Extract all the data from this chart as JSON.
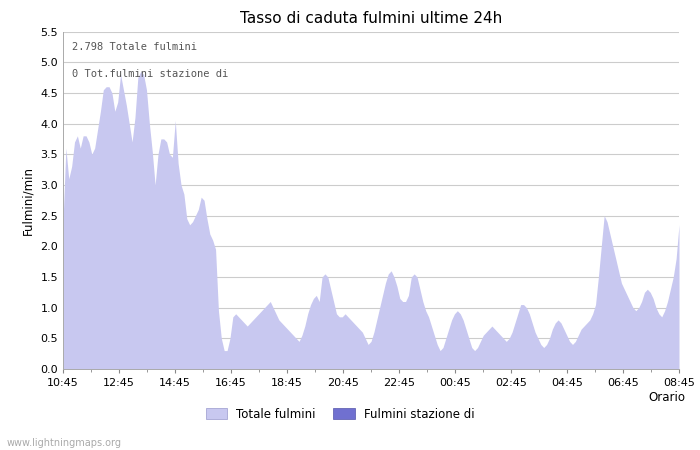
{
  "title": "Tasso di caduta fulmini ultime 24h",
  "xlabel": "Orario",
  "ylabel": "Fulmini/min",
  "ylim": [
    0.0,
    5.5
  ],
  "yticks": [
    0.0,
    0.5,
    1.0,
    1.5,
    2.0,
    2.5,
    3.0,
    3.5,
    4.0,
    4.5,
    5.0,
    5.5
  ],
  "xtick_labels": [
    "10:45",
    "12:45",
    "14:45",
    "16:45",
    "18:45",
    "20:45",
    "22:45",
    "00:45",
    "02:45",
    "04:45",
    "06:45",
    "08:45"
  ],
  "annotation_line1": "2.798 Totale fulmini",
  "annotation_line2": "0 Tot.fulmini stazione di",
  "legend_label1": "Totale fulmini",
  "legend_label2": "Fulmini stazione di",
  "fill_color1": "#c8c8f0",
  "fill_color2": "#7070d0",
  "watermark": "www.lightningmaps.org",
  "background_color": "#ffffff",
  "grid_color": "#cccccc",
  "values": [
    2.4,
    3.6,
    3.1,
    3.3,
    3.7,
    3.8,
    3.6,
    3.8,
    3.8,
    3.7,
    3.5,
    3.6,
    3.9,
    4.2,
    4.55,
    4.6,
    4.6,
    4.5,
    4.2,
    4.35,
    4.8,
    4.55,
    4.3,
    4.0,
    3.7,
    4.1,
    4.75,
    4.85,
    4.8,
    4.55,
    4.0,
    3.55,
    3.0,
    3.5,
    3.75,
    3.75,
    3.7,
    3.5,
    3.45,
    4.05,
    3.35,
    3.0,
    2.85,
    2.45,
    2.35,
    2.4,
    2.5,
    2.6,
    2.8,
    2.75,
    2.45,
    2.2,
    2.1,
    1.95,
    0.95,
    0.5,
    0.3,
    0.3,
    0.5,
    0.85,
    0.9,
    0.85,
    0.8,
    0.75,
    0.7,
    0.75,
    0.8,
    0.85,
    0.9,
    0.95,
    1.0,
    1.05,
    1.1,
    1.0,
    0.9,
    0.8,
    0.75,
    0.7,
    0.65,
    0.6,
    0.55,
    0.5,
    0.45,
    0.55,
    0.7,
    0.9,
    1.05,
    1.15,
    1.2,
    1.1,
    1.5,
    1.55,
    1.5,
    1.3,
    1.1,
    0.9,
    0.85,
    0.85,
    0.9,
    0.85,
    0.8,
    0.75,
    0.7,
    0.65,
    0.6,
    0.5,
    0.4,
    0.45,
    0.6,
    0.8,
    1.0,
    1.2,
    1.4,
    1.55,
    1.6,
    1.5,
    1.35,
    1.15,
    1.1,
    1.1,
    1.2,
    1.5,
    1.55,
    1.5,
    1.3,
    1.1,
    0.95,
    0.85,
    0.7,
    0.55,
    0.4,
    0.3,
    0.35,
    0.5,
    0.65,
    0.8,
    0.9,
    0.95,
    0.9,
    0.8,
    0.65,
    0.5,
    0.35,
    0.3,
    0.35,
    0.45,
    0.55,
    0.6,
    0.65,
    0.7,
    0.65,
    0.6,
    0.55,
    0.5,
    0.45,
    0.5,
    0.6,
    0.75,
    0.9,
    1.05,
    1.05,
    1.0,
    0.9,
    0.75,
    0.6,
    0.5,
    0.4,
    0.35,
    0.4,
    0.5,
    0.65,
    0.75,
    0.8,
    0.75,
    0.65,
    0.55,
    0.45,
    0.4,
    0.45,
    0.55,
    0.65,
    0.7,
    0.75,
    0.8,
    0.9,
    1.05,
    1.5,
    2.0,
    2.5,
    2.4,
    2.2,
    2.0,
    1.8,
    1.6,
    1.4,
    1.3,
    1.2,
    1.1,
    1.0,
    0.95,
    1.0,
    1.1,
    1.25,
    1.3,
    1.25,
    1.15,
    1.0,
    0.9,
    0.85,
    0.95,
    1.1,
    1.3,
    1.5,
    1.8,
    2.35
  ]
}
